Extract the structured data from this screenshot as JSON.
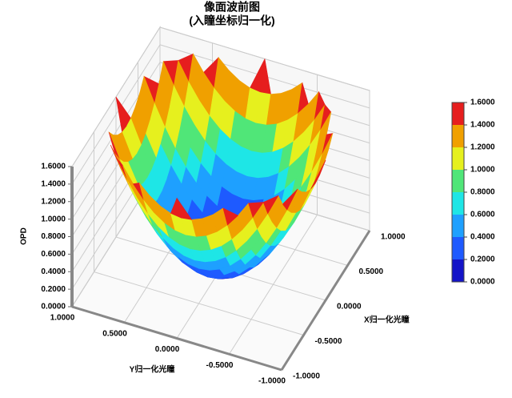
{
  "chart_data": {
    "type": "surface",
    "title": "像面波前图",
    "subtitle": "(入瞳坐标归一化)",
    "xlabel": "X归一化光瞳",
    "ylabel": "Y归一化光瞳",
    "zlabel": "OPD",
    "x": [
      -1,
      -0.9,
      -0.8,
      -0.7,
      -0.6,
      -0.5,
      -0.4,
      -0.3,
      -0.2,
      -0.1,
      0,
      0.1,
      0.2,
      0.3,
      0.4,
      0.5,
      0.6,
      0.7,
      0.8,
      0.9,
      1
    ],
    "y": [
      -1,
      -0.9,
      -0.8,
      -0.7,
      -0.6,
      -0.5,
      -0.4,
      -0.3,
      -0.2,
      -0.1,
      0,
      0.1,
      0.2,
      0.3,
      0.4,
      0.5,
      0.6,
      0.7,
      0.8,
      0.9,
      1
    ],
    "z": [
      [
        null,
        null,
        null,
        null,
        null,
        null,
        null,
        null,
        null,
        null,
        1.6,
        null,
        null,
        null,
        null,
        null,
        null,
        null,
        null,
        null,
        null
      ],
      [
        null,
        null,
        null,
        null,
        null,
        null,
        1.552,
        1.44,
        1.36,
        1.312,
        1.296,
        1.312,
        1.36,
        1.44,
        1.552,
        null,
        null,
        null,
        null,
        null,
        null
      ],
      [
        null,
        null,
        null,
        null,
        1.6,
        1.424,
        1.28,
        1.168,
        1.088,
        1.04,
        1.024,
        1.04,
        1.088,
        1.168,
        1.28,
        1.424,
        1.6,
        null,
        null,
        null,
        null
      ],
      [
        null,
        null,
        null,
        1.568,
        1.36,
        1.184,
        1.04,
        0.928,
        0.848,
        0.8,
        0.784,
        0.8,
        0.848,
        0.928,
        1.04,
        1.184,
        1.36,
        1.568,
        null,
        null,
        null
      ],
      [
        null,
        null,
        1.6,
        1.36,
        1.152,
        0.976,
        0.832,
        0.72,
        0.64,
        0.592,
        0.576,
        0.592,
        0.64,
        0.72,
        0.832,
        0.976,
        1.152,
        1.36,
        1.6,
        null,
        null
      ],
      [
        null,
        null,
        1.424,
        1.184,
        0.976,
        0.8,
        0.656,
        0.544,
        0.464,
        0.416,
        0.4,
        0.416,
        0.464,
        0.544,
        0.656,
        0.8,
        0.976,
        1.184,
        1.424,
        null,
        null
      ],
      [
        null,
        1.552,
        1.28,
        1.04,
        0.832,
        0.656,
        0.512,
        0.4,
        0.32,
        0.272,
        0.256,
        0.272,
        0.32,
        0.4,
        0.512,
        0.656,
        0.832,
        1.04,
        1.28,
        1.552,
        null
      ],
      [
        null,
        1.44,
        1.168,
        0.928,
        0.72,
        0.544,
        0.4,
        0.288,
        0.208,
        0.16,
        0.144,
        0.16,
        0.208,
        0.288,
        0.4,
        0.544,
        0.72,
        0.928,
        1.168,
        1.44,
        null
      ],
      [
        null,
        1.36,
        1.088,
        0.848,
        0.64,
        0.464,
        0.32,
        0.208,
        0.128,
        0.08,
        0.064,
        0.08,
        0.128,
        0.208,
        0.32,
        0.464,
        0.64,
        0.848,
        1.088,
        1.36,
        null
      ],
      [
        null,
        1.312,
        1.04,
        0.8,
        0.592,
        0.416,
        0.272,
        0.16,
        0.08,
        0.032,
        0.016,
        0.032,
        0.08,
        0.16,
        0.272,
        0.416,
        0.592,
        0.8,
        1.04,
        1.312,
        null
      ],
      [
        1.6,
        1.296,
        1.024,
        0.784,
        0.576,
        0.4,
        0.256,
        0.144,
        0.064,
        0.016,
        0,
        0.016,
        0.064,
        0.144,
        0.256,
        0.4,
        0.576,
        0.784,
        1.024,
        1.296,
        1.6
      ],
      [
        null,
        1.312,
        1.04,
        0.8,
        0.592,
        0.416,
        0.272,
        0.16,
        0.08,
        0.032,
        0.016,
        0.032,
        0.08,
        0.16,
        0.272,
        0.416,
        0.592,
        0.8,
        1.04,
        1.312,
        null
      ],
      [
        null,
        1.36,
        1.088,
        0.848,
        0.64,
        0.464,
        0.32,
        0.208,
        0.128,
        0.08,
        0.064,
        0.08,
        0.128,
        0.208,
        0.32,
        0.464,
        0.64,
        0.848,
        1.088,
        1.36,
        null
      ],
      [
        null,
        1.44,
        1.168,
        0.928,
        0.72,
        0.544,
        0.4,
        0.288,
        0.208,
        0.16,
        0.144,
        0.16,
        0.208,
        0.288,
        0.4,
        0.544,
        0.72,
        0.928,
        1.168,
        1.44,
        null
      ],
      [
        null,
        1.552,
        1.28,
        1.04,
        0.832,
        0.656,
        0.512,
        0.4,
        0.32,
        0.272,
        0.256,
        0.272,
        0.32,
        0.4,
        0.512,
        0.656,
        0.832,
        1.04,
        1.28,
        1.552,
        null
      ],
      [
        null,
        null,
        1.424,
        1.184,
        0.976,
        0.8,
        0.656,
        0.544,
        0.464,
        0.416,
        0.4,
        0.416,
        0.464,
        0.544,
        0.656,
        0.8,
        0.976,
        1.184,
        1.424,
        null,
        null
      ],
      [
        null,
        null,
        1.6,
        1.36,
        1.152,
        0.976,
        0.832,
        0.72,
        0.64,
        0.592,
        0.576,
        0.592,
        0.64,
        0.72,
        0.832,
        0.976,
        1.152,
        1.36,
        1.6,
        null,
        null
      ],
      [
        null,
        null,
        null,
        1.568,
        1.36,
        1.184,
        1.04,
        0.928,
        0.848,
        0.8,
        0.784,
        0.8,
        0.848,
        0.928,
        1.04,
        1.184,
        1.36,
        1.568,
        null,
        null,
        null
      ],
      [
        null,
        null,
        null,
        null,
        1.6,
        1.424,
        1.28,
        1.168,
        1.088,
        1.04,
        1.024,
        1.04,
        1.088,
        1.168,
        1.28,
        1.424,
        1.6,
        null,
        null,
        null,
        null
      ],
      [
        null,
        null,
        null,
        null,
        null,
        null,
        1.552,
        1.44,
        1.36,
        1.312,
        1.296,
        1.312,
        1.36,
        1.44,
        1.552,
        null,
        null,
        null,
        null,
        null,
        null
      ],
      [
        null,
        null,
        null,
        null,
        null,
        null,
        null,
        null,
        null,
        null,
        1.6,
        null,
        null,
        null,
        null,
        null,
        null,
        null,
        null,
        null,
        null
      ]
    ],
    "xlim": [
      -1,
      1
    ],
    "ylim": [
      -1,
      1
    ],
    "zlim": [
      0,
      1.6
    ],
    "xticks": [
      {
        "value": -1,
        "label": "-1.0000"
      },
      {
        "value": -0.5,
        "label": "-0.5000"
      },
      {
        "value": 0,
        "label": "0.0000"
      },
      {
        "value": 0.5,
        "label": "0.5000"
      },
      {
        "value": 1,
        "label": "1.0000"
      }
    ],
    "yticks": [
      {
        "value": -1,
        "label": "-1.0000"
      },
      {
        "value": -0.5,
        "label": "-0.5000"
      },
      {
        "value": 0,
        "label": "0.0000"
      },
      {
        "value": 0.5,
        "label": "0.5000"
      },
      {
        "value": 1,
        "label": "1.0000"
      }
    ],
    "zticks": [
      {
        "value": 0,
        "label": "0.0000"
      },
      {
        "value": 0.2,
        "label": "0.2000"
      },
      {
        "value": 0.4,
        "label": "0.4000"
      },
      {
        "value": 0.6,
        "label": "0.6000"
      },
      {
        "value": 0.8,
        "label": "0.8000"
      },
      {
        "value": 1,
        "label": "1.0000"
      },
      {
        "value": 1.2,
        "label": "1.2000"
      },
      {
        "value": 1.4,
        "label": "1.4000"
      },
      {
        "value": 1.6,
        "label": "1.6000"
      }
    ],
    "colorbar_ticks": [
      {
        "value": 0,
        "label": "0.0000"
      },
      {
        "value": 0.2,
        "label": "0.2000"
      },
      {
        "value": 0.4,
        "label": "0.4000"
      },
      {
        "value": 0.6,
        "label": "0.6000"
      },
      {
        "value": 0.8,
        "label": "0.8000"
      },
      {
        "value": 1,
        "label": "1.0000"
      },
      {
        "value": 1.2,
        "label": "1.2000"
      },
      {
        "value": 1.4,
        "label": "1.4000"
      },
      {
        "value": 1.6,
        "label": "1.6000"
      }
    ],
    "colors": [
      "#1414c8",
      "#1e5aff",
      "#1ea0ff",
      "#1ee6e6",
      "#50e678",
      "#e6f01e",
      "#f0a000",
      "#e61e1e"
    ]
  }
}
